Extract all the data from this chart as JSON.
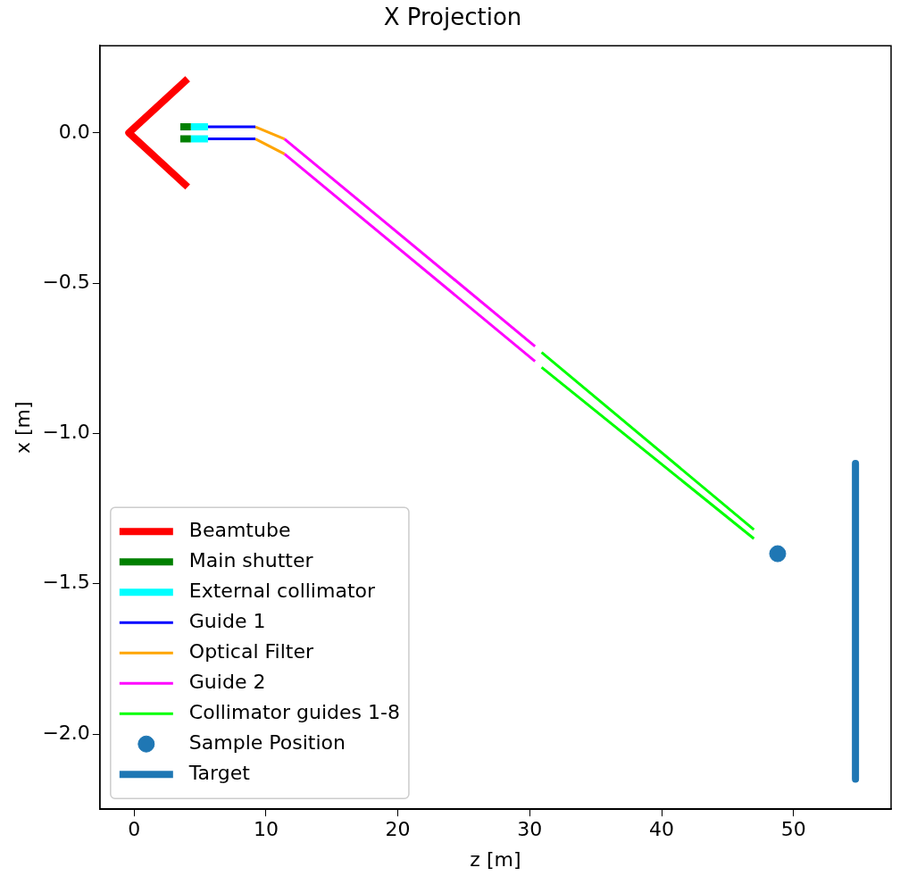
{
  "chart_data": {
    "type": "line",
    "title": "X Projection",
    "xlabel": "z [m]",
    "ylabel": "x [m]",
    "xlim": [
      -2.6,
      57.4
    ],
    "ylim": [
      -2.25,
      0.29
    ],
    "xticks": [
      0,
      10,
      20,
      30,
      40,
      50
    ],
    "yticks": [
      {
        "value": 0,
        "label": "0.0"
      },
      {
        "value": -0.5,
        "label": "−0.5"
      },
      {
        "value": -1,
        "label": "−1.0"
      },
      {
        "value": -1.5,
        "label": "−1.5"
      },
      {
        "value": -2,
        "label": "−2.0"
      }
    ],
    "grid": false,
    "legend": "bottom left",
    "marker": "none",
    "series": [
      {
        "name": "Beamtube",
        "color": "#ff0000",
        "x": [
          4.06,
          -0.4,
          4.06
        ],
        "values": [
          0.18,
          0,
          -0.18
        ]
      },
      {
        "name": "Main shutter",
        "color": "#008000",
        "x": [
          3.5,
          4.3
        ],
        "values": [
          0.02,
          0.02
        ]
      },
      {
        "color": "#008000",
        "x": [
          3.5,
          4.3
        ],
        "values": [
          -0.02,
          -0.02
        ]
      },
      {
        "name": "External collimator",
        "color": "#00ffff",
        "x": [
          4.3,
          5.6
        ],
        "values": [
          0.02,
          0.02
        ]
      },
      {
        "color": "#00ffff",
        "x": [
          4.3,
          5.6
        ],
        "values": [
          -0.02,
          -0.02
        ]
      },
      {
        "name": "Guide 1",
        "color": "#0000ff",
        "x": [
          5.6,
          9.2
        ],
        "values": [
          0.02,
          0.02
        ]
      },
      {
        "color": "#0000ff",
        "x": [
          5.6,
          9.2
        ],
        "values": [
          -0.02,
          -0.02
        ]
      },
      {
        "name": "Optical Filter",
        "color": "#ffa500",
        "x": [
          9.2,
          11.4
        ],
        "values": [
          0.02,
          -0.02
        ]
      },
      {
        "color": "#ffa500",
        "x": [
          9.2,
          11.4
        ],
        "values": [
          -0.02,
          -0.07
        ]
      },
      {
        "name": "Guide 2",
        "color": "#ff00ff",
        "x": [
          11.4,
          30.4
        ],
        "values": [
          -0.02,
          -0.71
        ]
      },
      {
        "color": "#ff00ff",
        "x": [
          11.4,
          30.4
        ],
        "values": [
          -0.07,
          -0.76
        ]
      },
      {
        "name": "Collimator guides 1-8",
        "color": "#00ff00",
        "x": [
          30.9,
          47.0
        ],
        "values": [
          -0.73,
          -1.32
        ]
      },
      {
        "color": "#00ff00",
        "x": [
          30.9,
          47.0
        ],
        "values": [
          -0.78,
          -1.35
        ]
      },
      {
        "name": "Sample Position",
        "type": "scatter",
        "marker": "circle",
        "color": "#1f77b4",
        "x": [
          48.8
        ],
        "values": [
          -1.4
        ]
      },
      {
        "name": "Target",
        "color": "#1f77b4",
        "x": [
          54.7,
          54.7
        ],
        "values": [
          -1.1,
          -2.15
        ]
      }
    ]
  }
}
